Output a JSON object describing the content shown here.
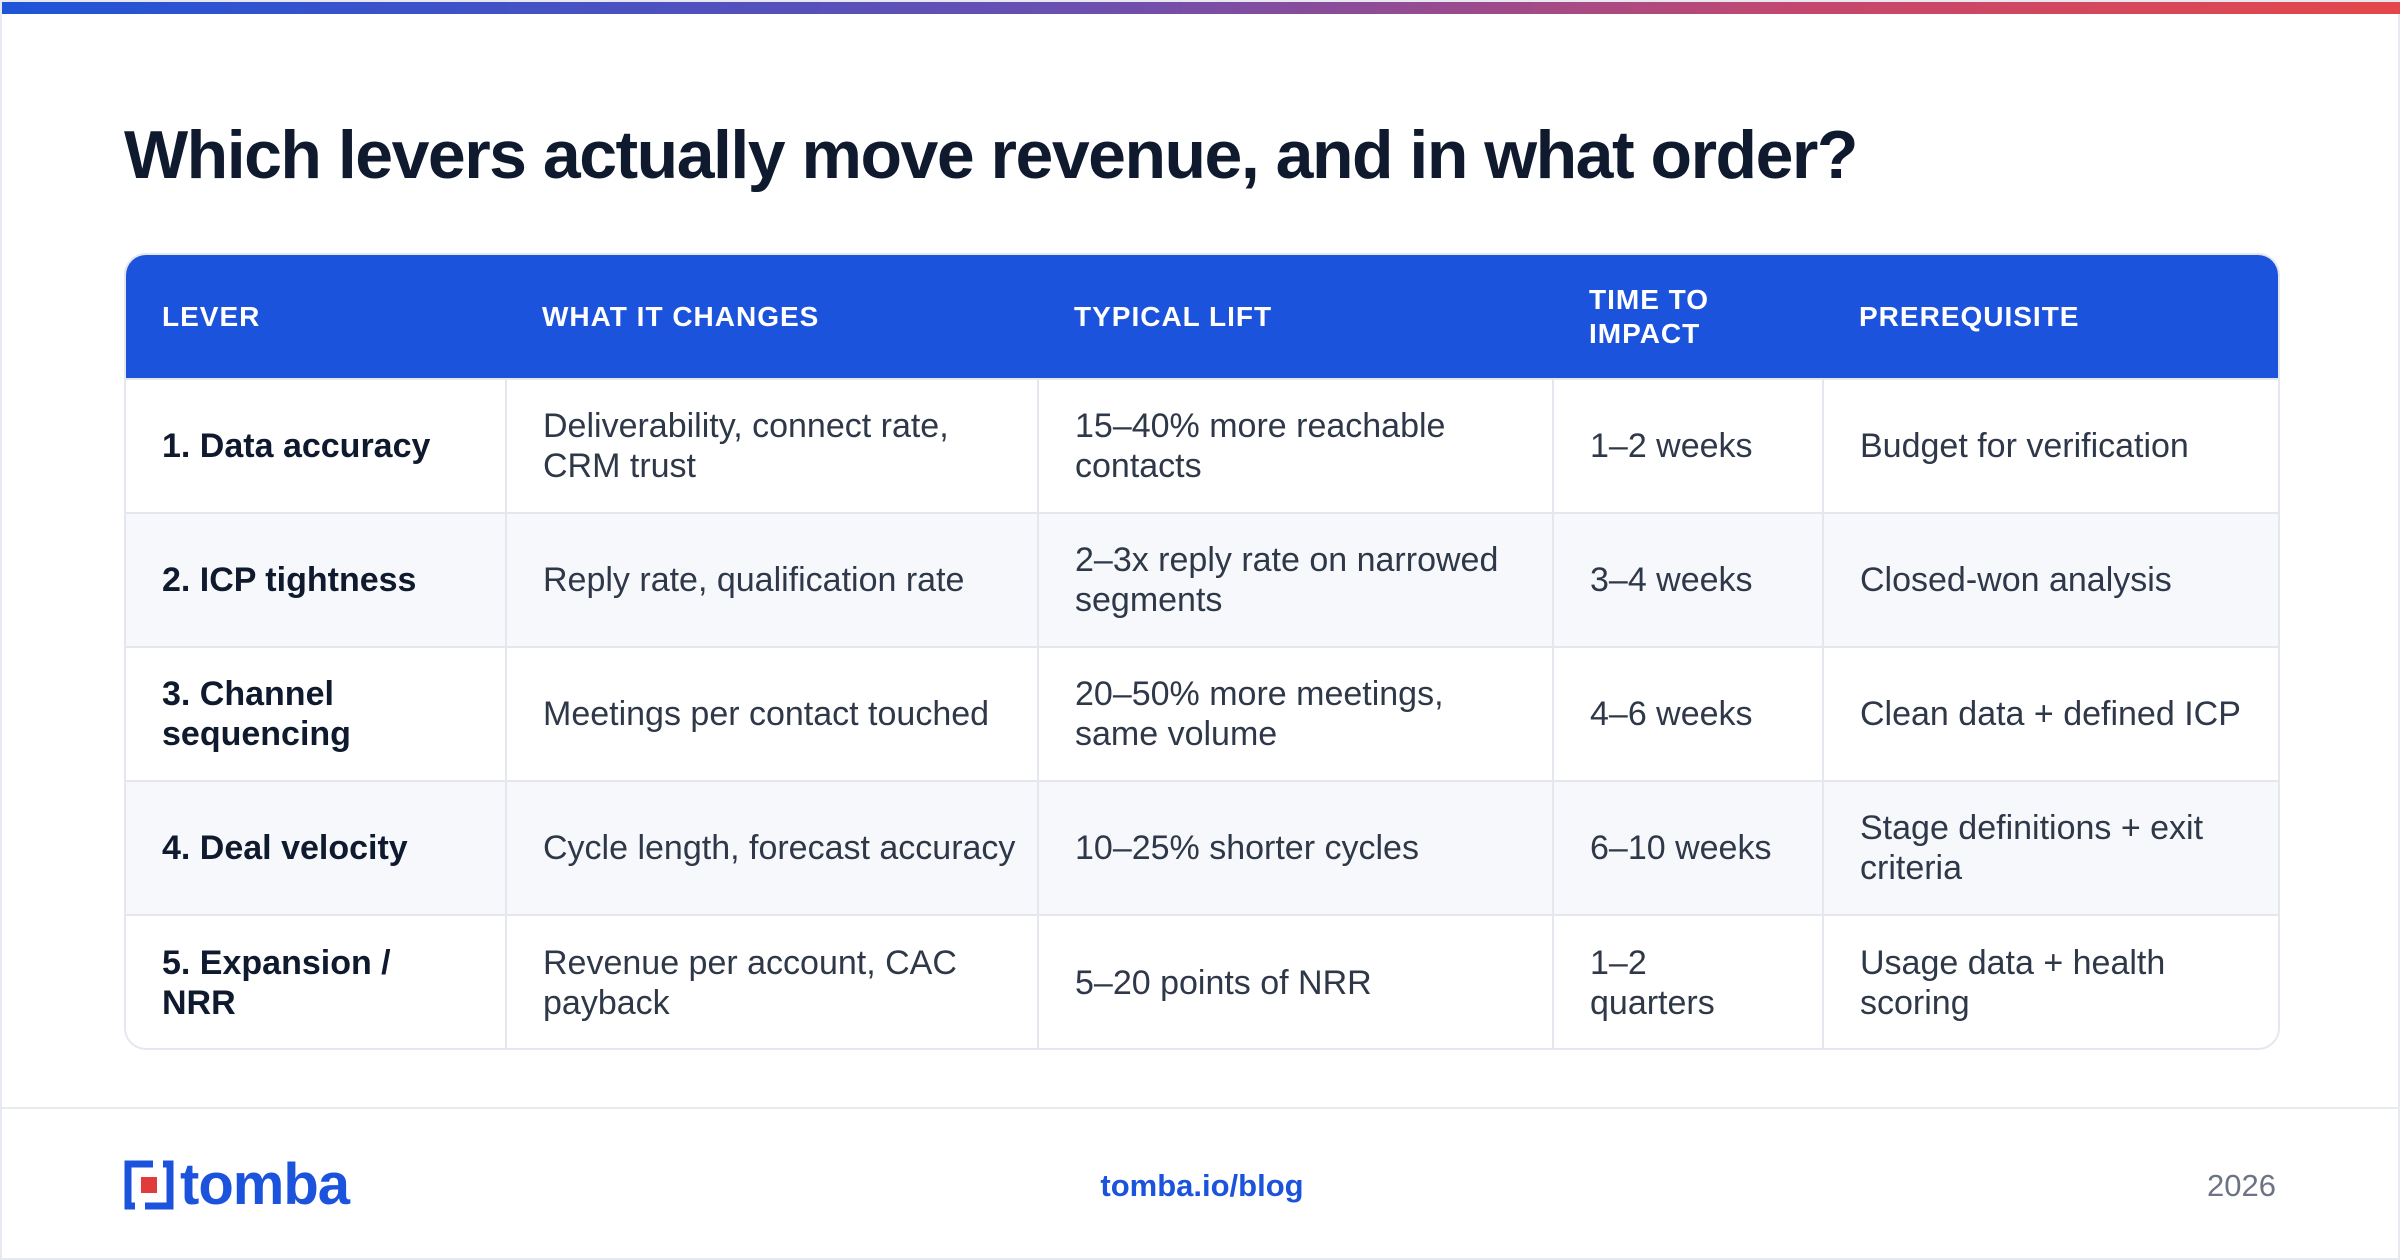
{
  "page": {
    "title": "Which levers actually move revenue, and in what order?"
  },
  "table": {
    "headers": [
      "LEVER",
      "WHAT IT CHANGES",
      "TYPICAL LIFT",
      "TIME TO IMPACT",
      "PREREQUISITE"
    ],
    "rows": [
      [
        "1. Data accuracy",
        "Deliverability, connect rate, CRM trust",
        "15–40% more reachable contacts",
        "1–2 weeks",
        "Budget for verification"
      ],
      [
        "2. ICP tightness",
        "Reply rate, qualification rate",
        "2–3x reply rate on narrowed segments",
        "3–4 weeks",
        "Closed-won analysis"
      ],
      [
        "3. Channel sequencing",
        "Meetings per contact touched",
        "20–50% more meetings, same volume",
        "4–6 weeks",
        "Clean data + defined ICP"
      ],
      [
        "4. Deal velocity",
        "Cycle length, forecast accuracy",
        "10–25% shorter cycles",
        "6–10 weeks",
        "Stage definitions + exit criteria"
      ],
      [
        "5. Expansion / NRR",
        "Revenue per account, CAC payback",
        "5–20 points of NRR",
        "1–2 quarters",
        "Usage data + health scoring"
      ]
    ]
  },
  "footer": {
    "logo_text": "tomba",
    "logo_icon": "tomba-logo-mark",
    "link": "tomba.io/blog",
    "year": "2026"
  },
  "colors": {
    "accent": "#1c53dc",
    "title": "#0f1a2e",
    "gradient_start": "#1f54d8",
    "gradient_end": "#e4474a",
    "logo_red": "#e23b3b"
  }
}
